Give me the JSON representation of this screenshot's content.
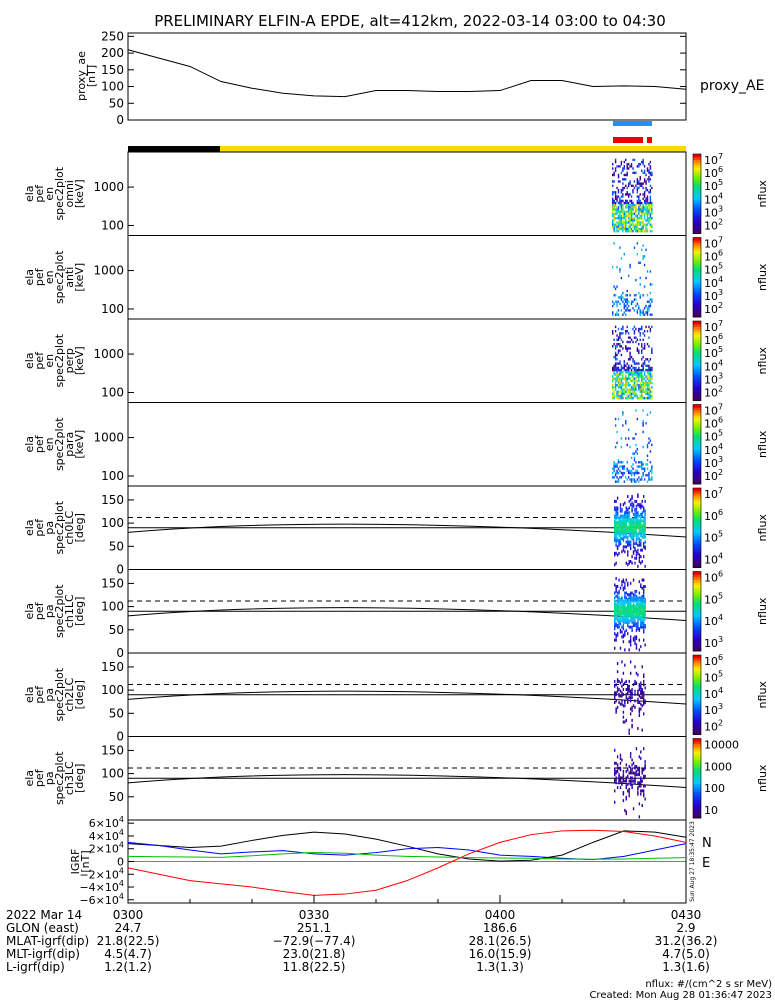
{
  "title": "PRELIMINARY ELFIN-A EPDE, alt=412km, 2022-03-14 03:00 to 04:30",
  "proxy_panel": {
    "ylabel_lines": [
      "proxy_ae",
      "[nT]"
    ],
    "legend": "proxy_AE",
    "yticks": [
      "250",
      "200",
      "150",
      "100",
      "50",
      "0"
    ]
  },
  "spec_panels": [
    {
      "ylabel_lines": [
        "ela",
        "pef",
        "en",
        "spec2plot",
        "omni",
        "[keV]"
      ],
      "yticks": [
        "1000",
        "100"
      ],
      "cbar_ticks": [
        "10^7",
        "10^6",
        "10^5",
        "10^4",
        "10^3",
        "10^2"
      ],
      "cbar_label": "nflux"
    },
    {
      "ylabel_lines": [
        "ela",
        "pef",
        "en",
        "spec2plot",
        "anti",
        "[keV]"
      ],
      "yticks": [
        "1000",
        "100"
      ],
      "cbar_ticks": [
        "10^7",
        "10^6",
        "10^5",
        "10^4",
        "10^3",
        "10^2"
      ],
      "cbar_label": "nflux"
    },
    {
      "ylabel_lines": [
        "ela",
        "pef",
        "en",
        "spec2plot",
        "perp",
        "[keV]"
      ],
      "yticks": [
        "1000",
        "100"
      ],
      "cbar_ticks": [
        "10^7",
        "10^6",
        "10^5",
        "10^4",
        "10^3",
        "10^2"
      ],
      "cbar_label": "nflux"
    },
    {
      "ylabel_lines": [
        "ela",
        "pef",
        "en",
        "spec2plot",
        "para",
        "[keV]"
      ],
      "yticks": [
        "1000",
        "100"
      ],
      "cbar_ticks": [
        "10^7",
        "10^6",
        "10^5",
        "10^4",
        "10^3",
        "10^2"
      ],
      "cbar_label": "nflux"
    }
  ],
  "pa_panels": [
    {
      "ylabel_lines": [
        "ela",
        "pef",
        "pa",
        "spec2plot",
        "ch0LC",
        "[deg]"
      ],
      "yticks": [
        "150",
        "100",
        "50",
        "0"
      ],
      "cbar_ticks": [
        "10^7",
        "10^6",
        "10^5",
        "10^4"
      ],
      "cbar_label": "nflux"
    },
    {
      "ylabel_lines": [
        "ela",
        "pef",
        "pa",
        "spec2plot",
        "ch1LC",
        "[deg]"
      ],
      "yticks": [
        "150",
        "100",
        "50",
        "0"
      ],
      "cbar_ticks": [
        "10^6",
        "10^5",
        "10^4",
        "10^3"
      ],
      "cbar_label": "nflux"
    },
    {
      "ylabel_lines": [
        "ela",
        "pef",
        "pa",
        "spec2plot",
        "ch2LC",
        "[deg]"
      ],
      "yticks": [
        "150",
        "100",
        "50",
        "0"
      ],
      "cbar_ticks": [
        "10^6",
        "10^5",
        "10^4",
        "10^3",
        "10^2"
      ],
      "cbar_label": "nflux"
    },
    {
      "ylabel_lines": [
        "ela",
        "pef",
        "pa",
        "spec2plot",
        "ch3LC",
        "[deg]"
      ],
      "yticks": [
        "150",
        "100",
        "50"
      ],
      "cbar_ticks": [
        "10000",
        "1000",
        "100",
        "10"
      ],
      "cbar_label": "nflux"
    }
  ],
  "igrf_panel": {
    "ylabel_lines": [
      "IGRF",
      "[nT]"
    ],
    "yticks": [
      "6×10^4",
      "4×10^4",
      "2×10^4",
      "0",
      "−2×10^4",
      "−4×10^4",
      "−6×10^4"
    ],
    "legend": [
      {
        "label": "N",
        "color": "#0000ff"
      },
      {
        "label": "E",
        "color": "#00c000"
      }
    ],
    "side_stamp": "Sun Aug 27 18:35:47 2023"
  },
  "chart_data": [
    {
      "type": "line",
      "title": "PRELIMINARY ELFIN-A EPDE, alt=412km, 2022-03-14 03:00 to 04:30",
      "ylabel": "proxy_ae [nT]",
      "ylim": [
        0,
        260
      ],
      "x_minutes_after_0300": [
        0,
        5,
        10,
        15,
        20,
        25,
        30,
        35,
        40,
        45,
        50,
        55,
        60,
        65,
        70,
        75,
        80,
        85,
        90
      ],
      "series": [
        {
          "name": "proxy_AE",
          "color": "#000000",
          "values": [
            210,
            185,
            160,
            115,
            95,
            80,
            72,
            70,
            88,
            88,
            85,
            85,
            88,
            118,
            118,
            100,
            102,
            100,
            92
          ]
        }
      ]
    },
    {
      "type": "line",
      "ylabel": "IGRF [nT]",
      "ylim": [
        -65000,
        65000
      ],
      "x_minutes_after_0300": [
        0,
        5,
        10,
        15,
        20,
        25,
        30,
        35,
        40,
        45,
        50,
        55,
        60,
        65,
        70,
        75,
        80,
        85,
        90
      ],
      "series": [
        {
          "color": "#000000",
          "values": [
            28000,
            25000,
            22000,
            24000,
            33000,
            41000,
            46000,
            43000,
            35000,
            24000,
            12000,
            4000,
            500,
            2000,
            10000,
            30000,
            48000,
            46000,
            38000
          ]
        },
        {
          "color": "#0000ff",
          "values": [
            30000,
            25000,
            18000,
            12000,
            15000,
            17000,
            12000,
            10000,
            14000,
            20000,
            22000,
            18000,
            10000,
            8000,
            5000,
            3000,
            8000,
            18000,
            28000
          ]
        },
        {
          "color": "#00c000",
          "values": [
            8000,
            7500,
            7000,
            6500,
            9000,
            12000,
            14000,
            13000,
            10000,
            8000,
            7000,
            6000,
            5500,
            5000,
            4000,
            3500,
            4000,
            5000,
            6000
          ]
        },
        {
          "color": "#ff0000",
          "values": [
            -10000,
            -20000,
            -30000,
            -35000,
            -40000,
            -47000,
            -53000,
            -51000,
            -45000,
            -30000,
            -10000,
            12000,
            30000,
            42000,
            48000,
            49000,
            47000,
            40000,
            30000
          ]
        }
      ]
    }
  ],
  "time_axis": {
    "row_labels": [
      "2022 Mar 14",
      "GLON (east)",
      "MLAT-igrf(dip)",
      "MLT-igrf(dip)",
      "L-igrf(dip)"
    ],
    "ticks": [
      {
        "time": "0300",
        "vals": [
          "24.7",
          "21.8(22.5)",
          "4.5(4.7)",
          "1.2(1.2)"
        ]
      },
      {
        "time": "0330",
        "vals": [
          "251.1",
          "−72.9(−77.4)",
          "23.0(21.8)",
          "11.8(22.5)"
        ]
      },
      {
        "time": "0400",
        "vals": [
          "186.6",
          "28.1(26.5)",
          "16.0(15.9)",
          "1.3(1.3)"
        ]
      },
      {
        "time": "0430",
        "vals": [
          "2.9",
          "31.2(36.2)",
          "4.7(5.0)",
          "1.3(1.6)"
        ]
      }
    ]
  },
  "footer": {
    "units": "nflux: #/(cm^2 s sr MeV)",
    "created": "Created: Mon Aug 28 01:36:47 2023"
  },
  "colors": {
    "science_bar_yellow": "#ffd800",
    "science_bar_black": "#000000",
    "orbit_bar_blue": "#1e90ff",
    "orbit_bar_red": "#ee0000"
  }
}
